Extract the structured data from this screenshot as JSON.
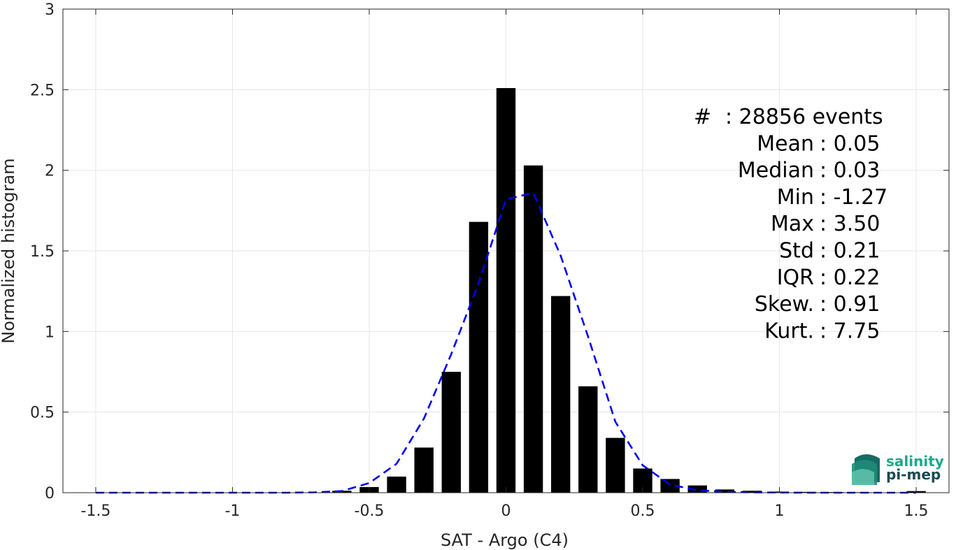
{
  "chart_data": {
    "type": "bar",
    "xlabel": "SAT - Argo (C4)",
    "ylabel": "Normalized histogram",
    "xlim": [
      -1.62,
      1.62
    ],
    "ylim": [
      0,
      3
    ],
    "grid": true,
    "xticks": [
      -1.5,
      -1,
      -0.5,
      0,
      0.5,
      1,
      1.5
    ],
    "xtick_labels": [
      "-1.5",
      "-1",
      "-0.5",
      "0",
      "0.5",
      "1",
      "1.5"
    ],
    "yticks": [
      0,
      0.5,
      1,
      1.5,
      2,
      2.5,
      3
    ],
    "ytick_labels": [
      "0",
      "0.5",
      "1",
      "1.5",
      "2",
      "2.5",
      "3"
    ],
    "bar_width": 0.07,
    "bars": {
      "x": [
        -1.5,
        -1.4,
        -1.3,
        -1.2,
        -1.1,
        -1.0,
        -0.9,
        -0.8,
        -0.7,
        -0.6,
        -0.5,
        -0.4,
        -0.3,
        -0.2,
        -0.1,
        0.0,
        0.1,
        0.2,
        0.3,
        0.4,
        0.5,
        0.6,
        0.7,
        0.8,
        0.9,
        1.0,
        1.1,
        1.2,
        1.3,
        1.4,
        1.5
      ],
      "values": [
        0,
        0,
        0,
        0,
        0,
        0,
        0,
        0,
        0.002,
        0.012,
        0.035,
        0.1,
        0.28,
        0.75,
        1.68,
        2.51,
        2.03,
        1.22,
        0.66,
        0.34,
        0.15,
        0.085,
        0.045,
        0.02,
        0.012,
        0.007,
        0.005,
        0.004,
        0.003,
        0.002,
        0.01
      ]
    },
    "fit_curve": {
      "style": "dashed",
      "color": "#0000ee",
      "x": [
        -1.5,
        -1.4,
        -1.3,
        -1.2,
        -1.1,
        -1.0,
        -0.9,
        -0.8,
        -0.7,
        -0.6,
        -0.5,
        -0.4,
        -0.3,
        -0.2,
        -0.1,
        0.0,
        0.1,
        0.2,
        0.3,
        0.4,
        0.5,
        0.6,
        0.7,
        0.8,
        0.9,
        1.0,
        1.1,
        1.2,
        1.3,
        1.4,
        1.5
      ],
      "values": [
        0,
        0,
        0,
        0,
        0,
        0,
        0,
        0,
        0.002,
        0.01,
        0.06,
        0.18,
        0.46,
        0.86,
        1.3,
        1.82,
        1.86,
        1.47,
        0.97,
        0.44,
        0.17,
        0.05,
        0.015,
        0.005,
        0.002,
        0.001,
        0,
        0,
        0,
        0,
        0
      ]
    },
    "annotations": [
      {
        "label": "#",
        "value": ": 28856 events"
      },
      {
        "label": "Mean",
        "value": ": 0.05"
      },
      {
        "label": "Median",
        "value": ": 0.03"
      },
      {
        "label": "Min",
        "value": ": -1.27"
      },
      {
        "label": "Max",
        "value": ": 3.50"
      },
      {
        "label": "Std",
        "value": ": 0.21"
      },
      {
        "label": "IQR",
        "value": ": 0.22"
      },
      {
        "label": "Skew.",
        "value": ": 0.91"
      },
      {
        "label": "Kurt.",
        "value": ": 7.75"
      }
    ]
  },
  "logo": {
    "line1": "salinity",
    "line2": "pi-mep",
    "color1": "#1fa78a",
    "color2": "#1c4a4f"
  },
  "colors": {
    "bar": "#000000",
    "grid": "#e6e6e6",
    "axis": "#262626"
  }
}
